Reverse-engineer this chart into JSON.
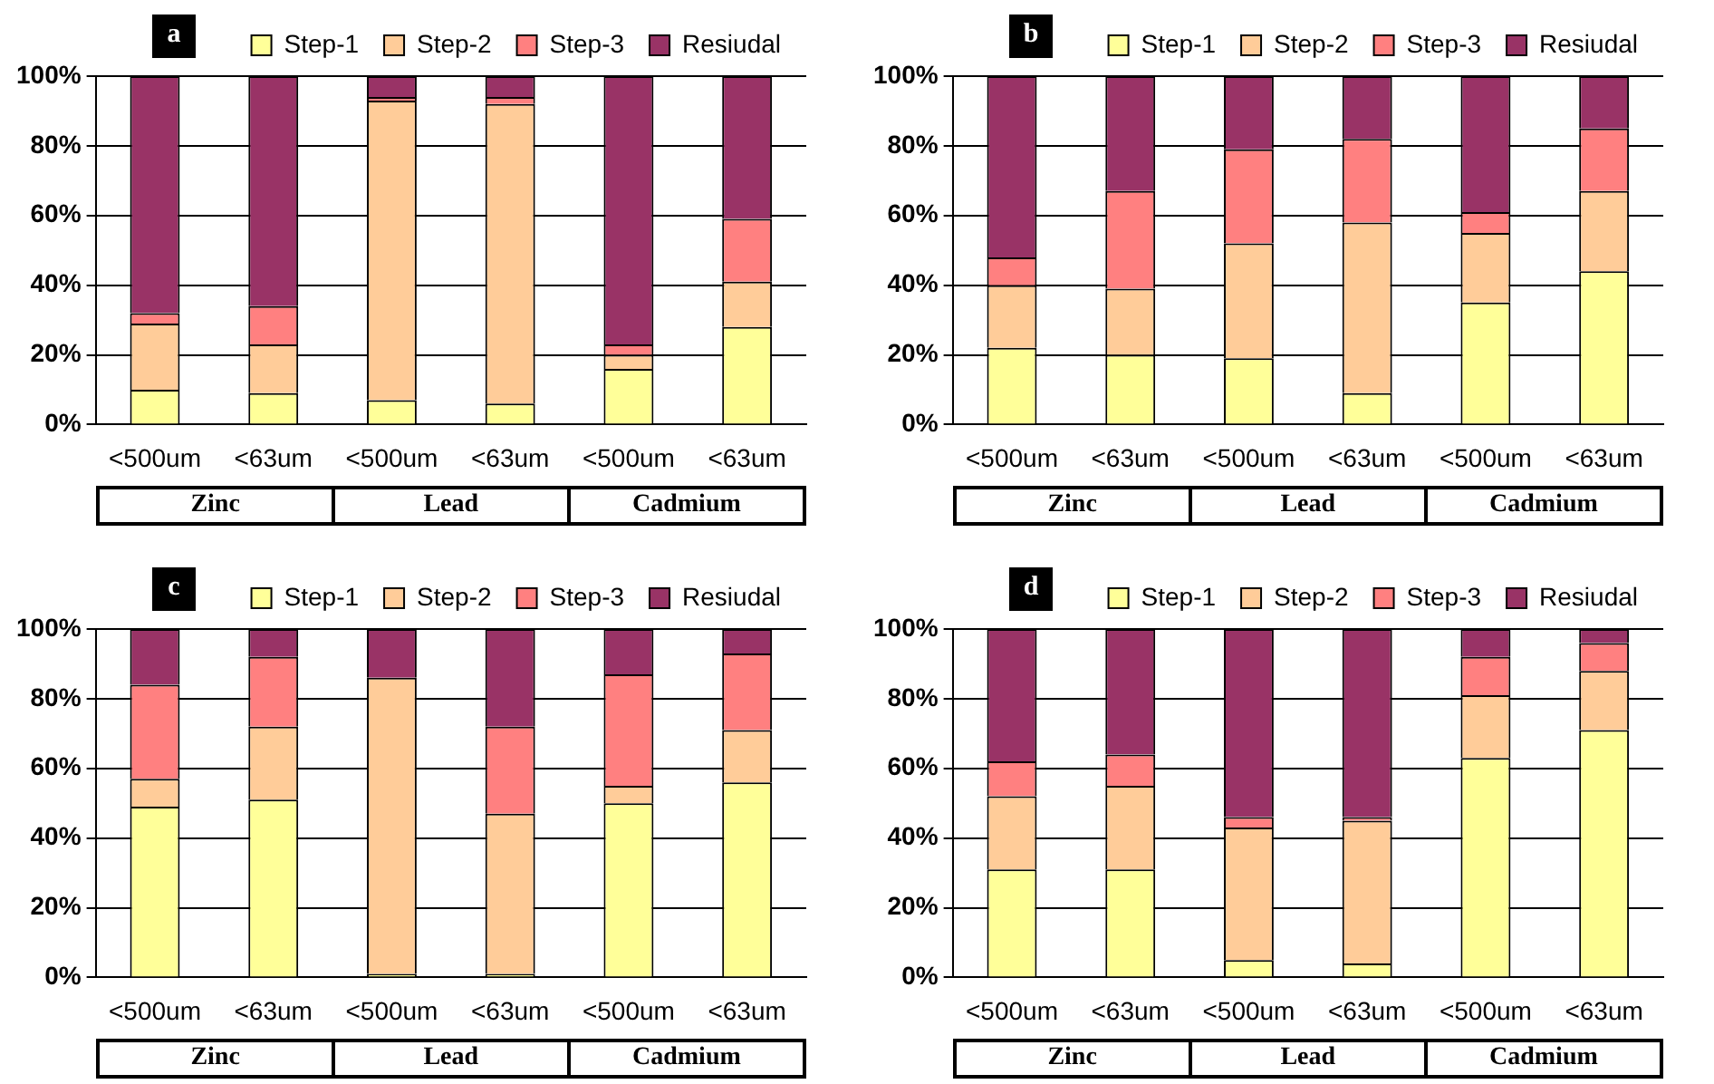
{
  "chart_data": [
    {
      "type": "bar",
      "title": "a",
      "categories": [
        "<500um",
        "<63um",
        "<500um",
        "<63um",
        "<500um",
        "<63um"
      ],
      "stacked": true,
      "legend": "top",
      "grid": "y",
      "ylim": [
        0,
        100
      ],
      "yticks": [
        {
          "value": 0,
          "label": "0%"
        },
        {
          "value": 20,
          "label": "20%"
        },
        {
          "value": 40,
          "label": "40%"
        },
        {
          "value": 60,
          "label": "60%"
        },
        {
          "value": 80,
          "label": "80%"
        },
        {
          "value": 100,
          "label": "100%"
        }
      ],
      "annotations": [
        "Zinc",
        "Lead",
        "Cadmium"
      ],
      "series": [
        {
          "name": "Step-1",
          "color": "#ffff99",
          "values": [
            10,
            9,
            7,
            6,
            16,
            28
          ]
        },
        {
          "name": "Step-2",
          "color": "#ffcc99",
          "values": [
            19,
            14,
            86,
            86,
            4,
            13
          ]
        },
        {
          "name": "Step-3",
          "color": "#ff8080",
          "values": [
            3,
            11,
            1,
            2,
            3,
            18
          ]
        },
        {
          "name": "Resiudal",
          "color": "#993366",
          "values": [
            68,
            66,
            6,
            6,
            77,
            41
          ]
        }
      ]
    },
    {
      "type": "bar",
      "title": "b",
      "categories": [
        "<500um",
        "<63um",
        "<500um",
        "<63um",
        "<500um",
        "<63um"
      ],
      "stacked": true,
      "legend": "top",
      "grid": "y",
      "ylim": [
        0,
        100
      ],
      "yticks": [
        {
          "value": 0,
          "label": "0%"
        },
        {
          "value": 20,
          "label": "20%"
        },
        {
          "value": 40,
          "label": "40%"
        },
        {
          "value": 60,
          "label": "60%"
        },
        {
          "value": 80,
          "label": "80%"
        },
        {
          "value": 100,
          "label": "100%"
        }
      ],
      "annotations": [
        "Zinc",
        "Lead",
        "Cadmium"
      ],
      "series": [
        {
          "name": "Step-1",
          "color": "#ffff99",
          "values": [
            22,
            20,
            19,
            9,
            35,
            44
          ]
        },
        {
          "name": "Step-2",
          "color": "#ffcc99",
          "values": [
            18,
            19,
            33,
            49,
            20,
            23
          ]
        },
        {
          "name": "Step-3",
          "color": "#ff8080",
          "values": [
            8,
            28,
            27,
            24,
            6,
            18
          ]
        },
        {
          "name": "Resiudal",
          "color": "#993366",
          "values": [
            52,
            33,
            21,
            18,
            39,
            15
          ]
        }
      ]
    },
    {
      "type": "bar",
      "title": "c",
      "categories": [
        "<500um",
        "<63um",
        "<500um",
        "<63um",
        "<500um",
        "<63um"
      ],
      "stacked": true,
      "legend": "top",
      "grid": "y",
      "ylim": [
        0,
        100
      ],
      "yticks": [
        {
          "value": 0,
          "label": "0%"
        },
        {
          "value": 20,
          "label": "20%"
        },
        {
          "value": 40,
          "label": "40%"
        },
        {
          "value": 60,
          "label": "60%"
        },
        {
          "value": 80,
          "label": "80%"
        },
        {
          "value": 100,
          "label": "100%"
        }
      ],
      "annotations": [
        "Zinc",
        "Lead",
        "Cadmium"
      ],
      "series": [
        {
          "name": "Step-1",
          "color": "#ffff99",
          "values": [
            49,
            51,
            1,
            1,
            50,
            56
          ]
        },
        {
          "name": "Step-2",
          "color": "#ffcc99",
          "values": [
            8,
            21,
            85,
            46,
            5,
            15
          ]
        },
        {
          "name": "Step-3",
          "color": "#ff8080",
          "values": [
            27,
            20,
            0,
            25,
            32,
            22
          ]
        },
        {
          "name": "Resiudal",
          "color": "#993366",
          "values": [
            16,
            8,
            14,
            28,
            13,
            7
          ]
        }
      ]
    },
    {
      "type": "bar",
      "title": "d",
      "categories": [
        "<500um",
        "<63um",
        "<500um",
        "<63um",
        "<500um",
        "<63um"
      ],
      "stacked": true,
      "legend": "top",
      "grid": "y",
      "ylim": [
        0,
        100
      ],
      "yticks": [
        {
          "value": 0,
          "label": "0%"
        },
        {
          "value": 20,
          "label": "20%"
        },
        {
          "value": 40,
          "label": "40%"
        },
        {
          "value": 60,
          "label": "60%"
        },
        {
          "value": 80,
          "label": "80%"
        },
        {
          "value": 100,
          "label": "100%"
        }
      ],
      "annotations": [
        "Zinc",
        "Lead",
        "Cadmium"
      ],
      "series": [
        {
          "name": "Step-1",
          "color": "#ffff99",
          "values": [
            31,
            31,
            5,
            4,
            63,
            71
          ]
        },
        {
          "name": "Step-2",
          "color": "#ffcc99",
          "values": [
            21,
            24,
            38,
            41,
            18,
            17
          ]
        },
        {
          "name": "Step-3",
          "color": "#ff8080",
          "values": [
            10,
            9,
            3,
            1,
            11,
            8
          ]
        },
        {
          "name": "Resiudal",
          "color": "#993366",
          "values": [
            38,
            36,
            54,
            54,
            8,
            4
          ]
        }
      ]
    }
  ]
}
